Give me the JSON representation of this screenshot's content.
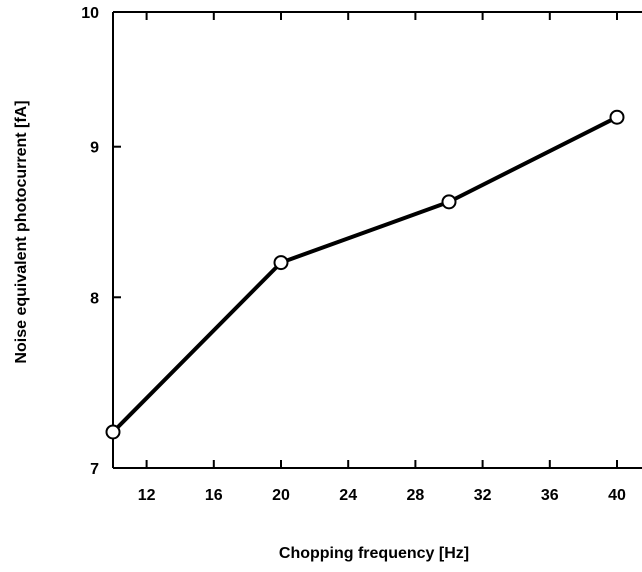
{
  "chart_data": {
    "type": "line",
    "title": "",
    "xlabel": "Chopping frequency [Hz]",
    "ylabel": "Noise equivalent photocurrent [fA]",
    "x_scale": "linear",
    "y_scale": "log",
    "xlim": [
      10,
      41
    ],
    "ylim": [
      7,
      10
    ],
    "x_ticks": [
      12,
      16,
      20,
      24,
      28,
      32,
      36,
      40
    ],
    "x_tick_labels": [
      "12",
      "16",
      "20",
      "24",
      "28",
      "32",
      "36",
      "40"
    ],
    "y_ticks": [
      7,
      8,
      9,
      10
    ],
    "y_tick_labels": [
      "7",
      "8",
      "9",
      "10"
    ],
    "grid": false,
    "legend": false,
    "series": [
      {
        "x": [
          10,
          20,
          30,
          40
        ],
        "y": [
          7.2,
          8.22,
          8.62,
          9.21
        ],
        "marker": "open-circle",
        "color": "#000000"
      }
    ]
  }
}
